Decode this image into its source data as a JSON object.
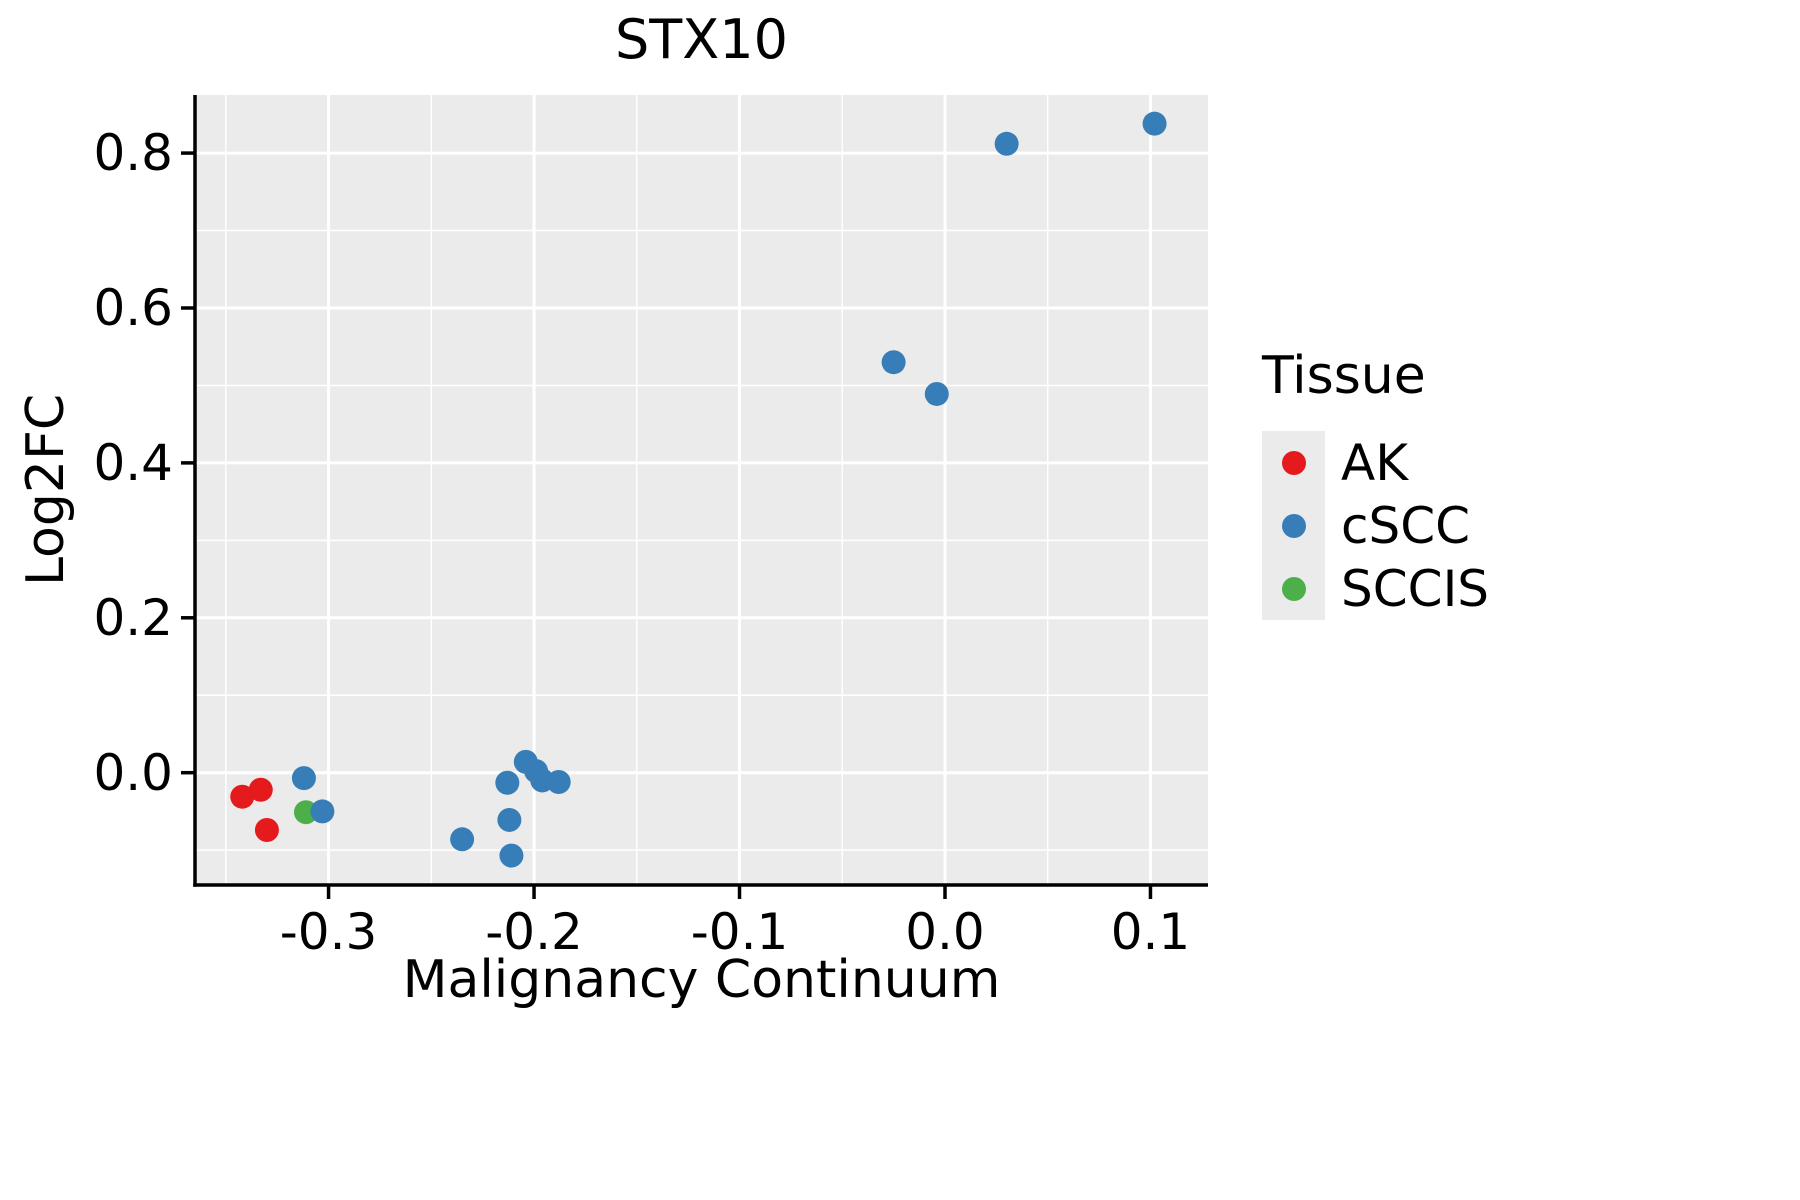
{
  "chart_data": {
    "type": "scatter",
    "title": "STX10",
    "xlabel": "Malignancy Continuum",
    "ylabel": "Log2FC",
    "xlim": [
      -0.365,
      0.128
    ],
    "ylim": [
      -0.145,
      0.875
    ],
    "x_ticks": {
      "values": [
        -0.3,
        -0.2,
        -0.1,
        0.0,
        0.1
      ],
      "labels": [
        "-0.3",
        "-0.2",
        "-0.1",
        "0.0",
        "0.1"
      ]
    },
    "y_ticks": {
      "values": [
        0.0,
        0.2,
        0.4,
        0.6,
        0.8
      ],
      "labels": [
        "0.0",
        "0.2",
        "0.4",
        "0.6",
        "0.8"
      ]
    },
    "x_minor": [
      -0.35,
      -0.25,
      -0.15,
      -0.05,
      0.05
    ],
    "y_minor": [
      -0.1,
      0.1,
      0.3,
      0.5,
      0.7
    ],
    "panel_bg": "#EBEBEB",
    "grid_color": "#FFFFFF",
    "axis_color": "#000000",
    "legend": {
      "title": "Tissue",
      "entries": [
        {
          "label": "AK",
          "color": "#E41A1C"
        },
        {
          "label": "cSCC",
          "color": "#377EB8"
        },
        {
          "label": "SCCIS",
          "color": "#4DAF4A"
        }
      ]
    },
    "series": [
      {
        "name": "AK",
        "color": "#E41A1C",
        "points": [
          [
            -0.342,
            -0.031
          ],
          [
            -0.333,
            -0.022
          ],
          [
            -0.33,
            -0.074
          ]
        ]
      },
      {
        "name": "SCCIS",
        "color": "#4DAF4A",
        "points": [
          [
            -0.311,
            -0.051
          ]
        ]
      },
      {
        "name": "cSCC",
        "color": "#377EB8",
        "points": [
          [
            -0.312,
            -0.007
          ],
          [
            -0.303,
            -0.05
          ],
          [
            -0.235,
            -0.086
          ],
          [
            -0.213,
            -0.013
          ],
          [
            -0.212,
            -0.061
          ],
          [
            -0.211,
            -0.107
          ],
          [
            -0.204,
            0.014
          ],
          [
            -0.199,
            0.002
          ],
          [
            -0.196,
            -0.01
          ],
          [
            -0.188,
            -0.012
          ],
          [
            -0.025,
            0.53
          ],
          [
            -0.004,
            0.489
          ],
          [
            0.03,
            0.812
          ],
          [
            0.102,
            0.838
          ]
        ]
      }
    ]
  }
}
